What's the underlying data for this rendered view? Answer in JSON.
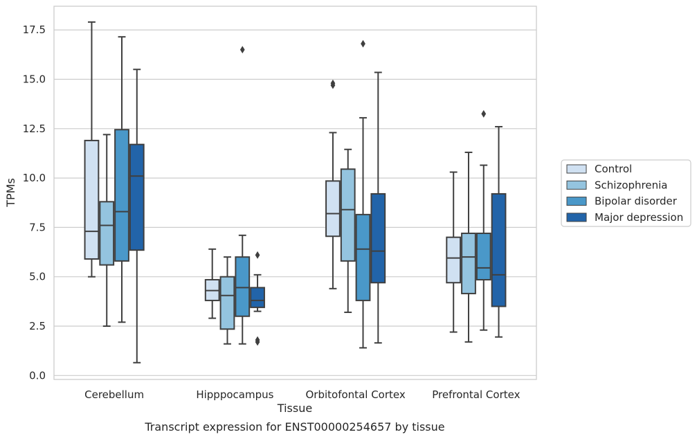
{
  "chart_data": {
    "type": "boxplot",
    "caption": "Transcript expression for ENST00000254657 by tissue",
    "xlabel": "Tissue",
    "ylabel": "TPMs",
    "ylim": [
      -0.2,
      18.7
    ],
    "yticks": [
      "0.0",
      "2.5",
      "5.0",
      "7.5",
      "10.0",
      "12.5",
      "15.0",
      "17.5"
    ],
    "ytick_values": [
      0,
      2.5,
      5,
      7.5,
      10,
      12.5,
      15,
      17.5
    ],
    "grid": "horizontal",
    "legend_position": "right",
    "categories": [
      "Cerebellum",
      "Hipppocampus",
      "Orbitofontal Cortex",
      "Prefrontal Cortex"
    ],
    "series": [
      {
        "name": "Control",
        "color": "#d0e1f2",
        "boxes": [
          {
            "whislo": 5.0,
            "q1": 5.9,
            "med": 7.3,
            "q3": 11.9,
            "whishi": 17.9,
            "fliers": []
          },
          {
            "whislo": 2.9,
            "q1": 3.8,
            "med": 4.3,
            "q3": 4.85,
            "whishi": 6.4,
            "fliers": []
          },
          {
            "whislo": 4.4,
            "q1": 7.05,
            "med": 8.2,
            "q3": 9.85,
            "whishi": 12.3,
            "fliers": [
              14.7,
              14.8
            ]
          },
          {
            "whislo": 2.2,
            "q1": 4.7,
            "med": 5.95,
            "q3": 7.0,
            "whishi": 10.3,
            "fliers": []
          }
        ]
      },
      {
        "name": "Schizophrenia",
        "color": "#94c4df",
        "boxes": [
          {
            "whislo": 2.5,
            "q1": 5.6,
            "med": 7.6,
            "q3": 8.8,
            "whishi": 12.2,
            "fliers": []
          },
          {
            "whislo": 1.6,
            "q1": 2.35,
            "med": 4.05,
            "q3": 5.0,
            "whishi": 6.0,
            "fliers": []
          },
          {
            "whislo": 3.2,
            "q1": 5.8,
            "med": 8.4,
            "q3": 10.45,
            "whishi": 11.45,
            "fliers": []
          },
          {
            "whislo": 1.7,
            "q1": 4.15,
            "med": 6.0,
            "q3": 7.2,
            "whishi": 11.3,
            "fliers": []
          }
        ]
      },
      {
        "name": "Bipolar disorder",
        "color": "#4a98c9",
        "boxes": [
          {
            "whislo": 2.7,
            "q1": 5.8,
            "med": 8.3,
            "q3": 12.45,
            "whishi": 17.15,
            "fliers": []
          },
          {
            "whislo": 1.6,
            "q1": 3.0,
            "med": 4.45,
            "q3": 6.0,
            "whishi": 7.1,
            "fliers": [
              16.5
            ]
          },
          {
            "whislo": 1.4,
            "q1": 3.8,
            "med": 6.4,
            "q3": 8.15,
            "whishi": 13.05,
            "fliers": [
              16.8
            ]
          },
          {
            "whislo": 2.3,
            "q1": 4.85,
            "med": 5.45,
            "q3": 7.2,
            "whishi": 10.65,
            "fliers": [
              13.25
            ]
          }
        ]
      },
      {
        "name": "Major depression",
        "color": "#2264a9",
        "boxes": [
          {
            "whislo": 0.65,
            "q1": 6.35,
            "med": 10.1,
            "q3": 11.7,
            "whishi": 15.5,
            "fliers": []
          },
          {
            "whislo": 3.25,
            "q1": 3.45,
            "med": 3.8,
            "q3": 4.45,
            "whishi": 5.1,
            "fliers": [
              6.1,
              1.8,
              1.7
            ]
          },
          {
            "whislo": 1.65,
            "q1": 4.7,
            "med": 6.3,
            "q3": 9.2,
            "whishi": 15.35,
            "fliers": []
          },
          {
            "whislo": 1.95,
            "q1": 3.5,
            "med": 5.1,
            "q3": 9.2,
            "whishi": 12.6,
            "fliers": []
          }
        ]
      }
    ]
  }
}
